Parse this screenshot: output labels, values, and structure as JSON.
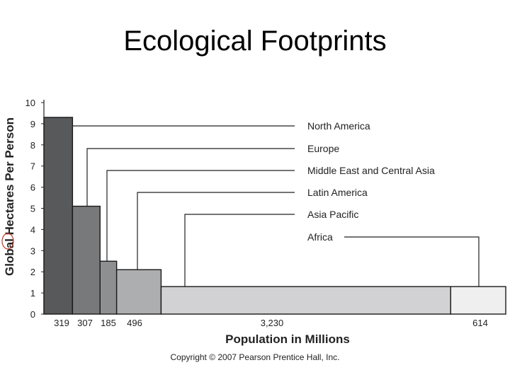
{
  "slide": {
    "title": "Ecological Footprints",
    "copyright": "Copyright © 2007 Pearson Prentice Hall, Inc."
  },
  "colors": {
    "North America": "#58595b",
    "Europe": "#78797b",
    "Middle East and Central Asia": "#8e8f91",
    "Latin America": "#adaeb0",
    "Asia Pacific": "#d2d2d4",
    "Africa": "#efefef",
    "stroke": "#1a1a1a",
    "label_red_circle": "#c0392b"
  },
  "chart_data": {
    "type": "bar",
    "subtype": "variable-width",
    "title": "",
    "xlabel": "Population in Millions",
    "ylabel": "Global Hectares Per Person",
    "ylim": [
      0,
      10
    ],
    "yticks": [
      "0",
      "1",
      "2",
      "3",
      "4",
      "5",
      "6",
      "7",
      "8",
      "9",
      "10"
    ],
    "grid": false,
    "legend": "right, callout lines",
    "series": [
      {
        "name": "North America",
        "population": 319,
        "population_label": "319",
        "value": 9.3
      },
      {
        "name": "Europe",
        "population": 307,
        "population_label": "307",
        "value": 5.1
      },
      {
        "name": "Middle East and Central Asia",
        "population": 185,
        "population_label": "185",
        "value": 2.5
      },
      {
        "name": "Latin America",
        "population": 496,
        "population_label": "496",
        "value": 2.1
      },
      {
        "name": "Asia Pacific",
        "population": 3230,
        "population_label": "3,230",
        "value": 1.3
      },
      {
        "name": "Africa",
        "population": 614,
        "population_label": "614",
        "value": 1.3
      }
    ]
  }
}
